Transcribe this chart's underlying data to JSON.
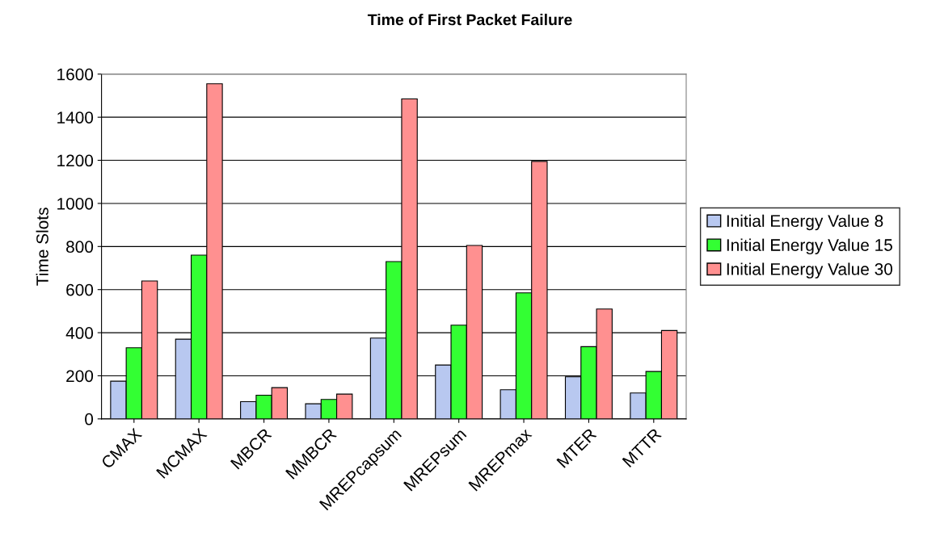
{
  "chart_data": {
    "type": "bar",
    "title": "Time of First Packet Failure",
    "ylabel": "Time Slots",
    "categories": [
      "CMAX",
      "MCMAX",
      "MBCR",
      "MMBCR",
      "MREPcapsum",
      "MREPsum",
      "MREPmax",
      "MTER",
      "MTTR"
    ],
    "series": [
      {
        "name": "Initial Energy Value 8",
        "color": "#b8c8f0",
        "values": [
          175,
          370,
          80,
          70,
          375,
          250,
          135,
          195,
          120
        ]
      },
      {
        "name": "Initial Energy Value 15",
        "color": "#33ff33",
        "values": [
          330,
          760,
          110,
          90,
          730,
          435,
          585,
          335,
          220
        ]
      },
      {
        "name": "Initial Energy Value 30",
        "color": "#ff9090",
        "values": [
          640,
          1555,
          145,
          115,
          1485,
          805,
          1195,
          510,
          410
        ]
      }
    ],
    "ylim": [
      0,
      1600
    ],
    "yticks": [
      0,
      200,
      400,
      600,
      800,
      1000,
      1200,
      1400,
      1600
    ],
    "grid": "y",
    "legend": "right"
  }
}
